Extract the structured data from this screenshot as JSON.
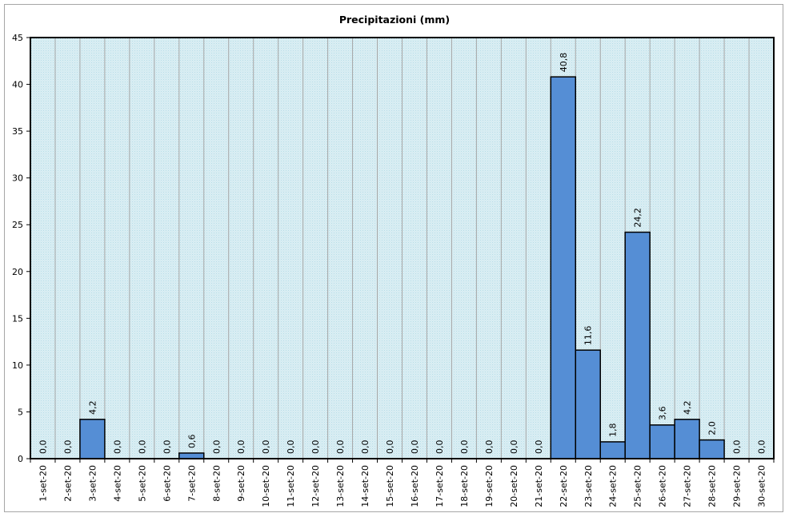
{
  "chart_data": {
    "type": "bar",
    "title": "Precipitazioni (mm)",
    "xlabel": "",
    "ylabel": "",
    "ylim": [
      0,
      45
    ],
    "yticks": [
      0,
      5,
      10,
      15,
      20,
      25,
      30,
      35,
      40,
      45
    ],
    "grid": "vertical",
    "legend": "none",
    "categories": [
      "1-set-20",
      "2-set-20",
      "3-set-20",
      "4-set-20",
      "5-set-20",
      "6-set-20",
      "7-set-20",
      "8-set-20",
      "9-set-20",
      "10-set-20",
      "11-set-20",
      "12-set-20",
      "13-set-20",
      "14-set-20",
      "15-set-20",
      "16-set-20",
      "17-set-20",
      "18-set-20",
      "19-set-20",
      "20-set-20",
      "21-set-20",
      "22-set-20",
      "23-set-20",
      "24-set-20",
      "25-set-20",
      "26-set-20",
      "27-set-20",
      "28-set-20",
      "29-set-20",
      "30-set-20"
    ],
    "values": [
      0.0,
      0.0,
      4.2,
      0.0,
      0.0,
      0.0,
      0.6,
      0.0,
      0.0,
      0.0,
      0.0,
      0.0,
      0.0,
      0.0,
      0.0,
      0.0,
      0.0,
      0.0,
      0.0,
      0.0,
      0.0,
      40.8,
      11.6,
      1.8,
      24.2,
      3.6,
      4.2,
      2.0,
      0.0,
      0.0
    ],
    "data_labels": [
      "0,0",
      "0,0",
      "4,2",
      "0,0",
      "0,0",
      "0,0",
      "0,6",
      "0,0",
      "0,0",
      "0,0",
      "0,0",
      "0,0",
      "0,0",
      "0,0",
      "0,0",
      "0,0",
      "0,0",
      "0,0",
      "0,0",
      "0,0",
      "0,0",
      "40,8",
      "11,6",
      "1,8",
      "24,2",
      "3,6",
      "4,2",
      "2,0",
      "0,0",
      "0,0"
    ],
    "colors": {
      "bar_fill": "#558ed5",
      "bar_stroke": "#000000",
      "plot_bg": "#daeef3",
      "plot_pattern": "#b7dde8",
      "grid": "#a6a6a6"
    }
  }
}
